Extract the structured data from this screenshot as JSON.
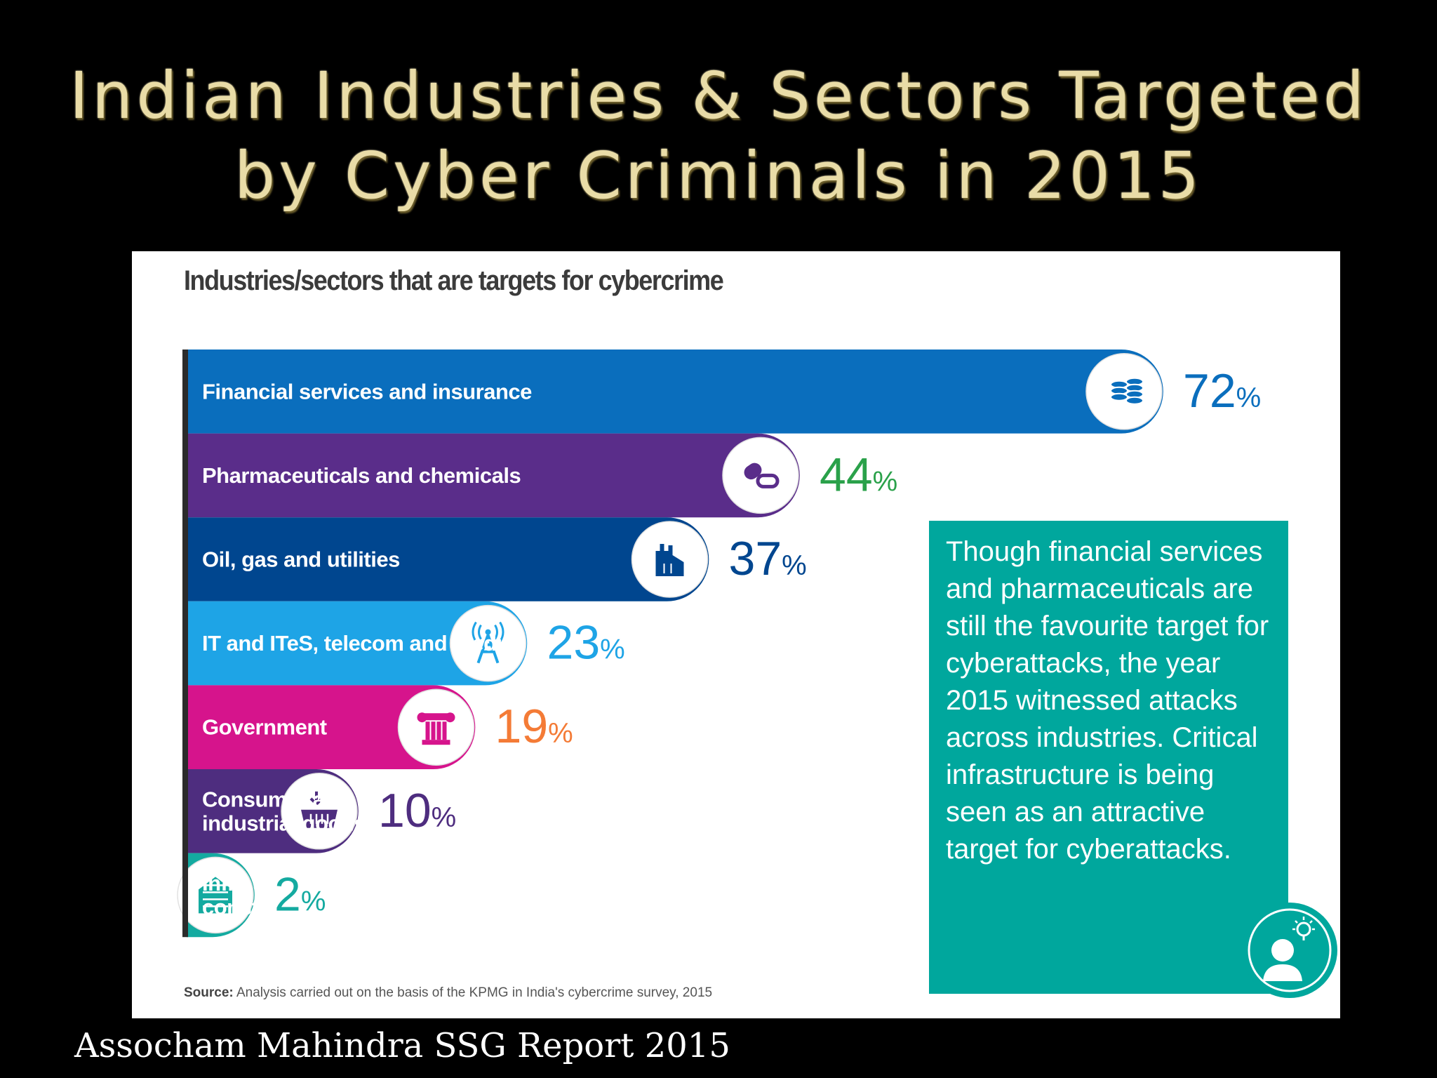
{
  "slide": {
    "title_line1": "Indian Industries & Sectors Targeted",
    "title_line2": "by Cyber Criminals in 2015",
    "footer": "Assocham Mahindra SSG Report 2015"
  },
  "chart_data": {
    "type": "bar",
    "orientation": "horizontal",
    "title": "Industries/sectors that are targets for cybercrime",
    "categories": [
      [
        "Financial services and insurance"
      ],
      [
        "Pharmaceuticals and chemicals"
      ],
      [
        "Oil, gas and utilities"
      ],
      [
        "IT and ITeS, telecom and media"
      ],
      [
        "Government"
      ],
      [
        "Consumer and",
        "industrial goods"
      ],
      [
        "Infra and",
        "construction"
      ]
    ],
    "values": [
      72,
      44,
      37,
      23,
      19,
      10,
      2
    ],
    "value_labels": [
      "72",
      "44",
      "37",
      "23",
      "19",
      "10",
      "2"
    ],
    "unit": "%",
    "bar_colors": [
      "#0a6ebd",
      "#5a2d8a",
      "#00468f",
      "#1ea4e6",
      "#d6148c",
      "#4e2d7f",
      "#14aaa0"
    ],
    "value_colors": [
      "#0a6ebd",
      "#2aa14a",
      "#00468f",
      "#1ea4e6",
      "#f47b36",
      "#4e2d7f",
      "#14aaa0"
    ],
    "icons": [
      "coins-stack-icon",
      "pills-icon",
      "factory-icon",
      "radio-tower-icon",
      "pillar-icon",
      "basket-icon",
      "building-icon"
    ],
    "xlim": [
      0,
      72
    ],
    "source_label": "Source:",
    "source_text": "Analysis carried out on the basis of the KPMG in India's cybercrime survey, 2015"
  },
  "callout": {
    "text": "Though financial services and pharmaceuticals are still the favourite target for cyberattacks, the year 2015 witnessed attacks across industries. Critical infrastructure is being seen as an attractive target for cyberattacks.",
    "color": "#00a79d",
    "icon": "person-idea-icon"
  }
}
